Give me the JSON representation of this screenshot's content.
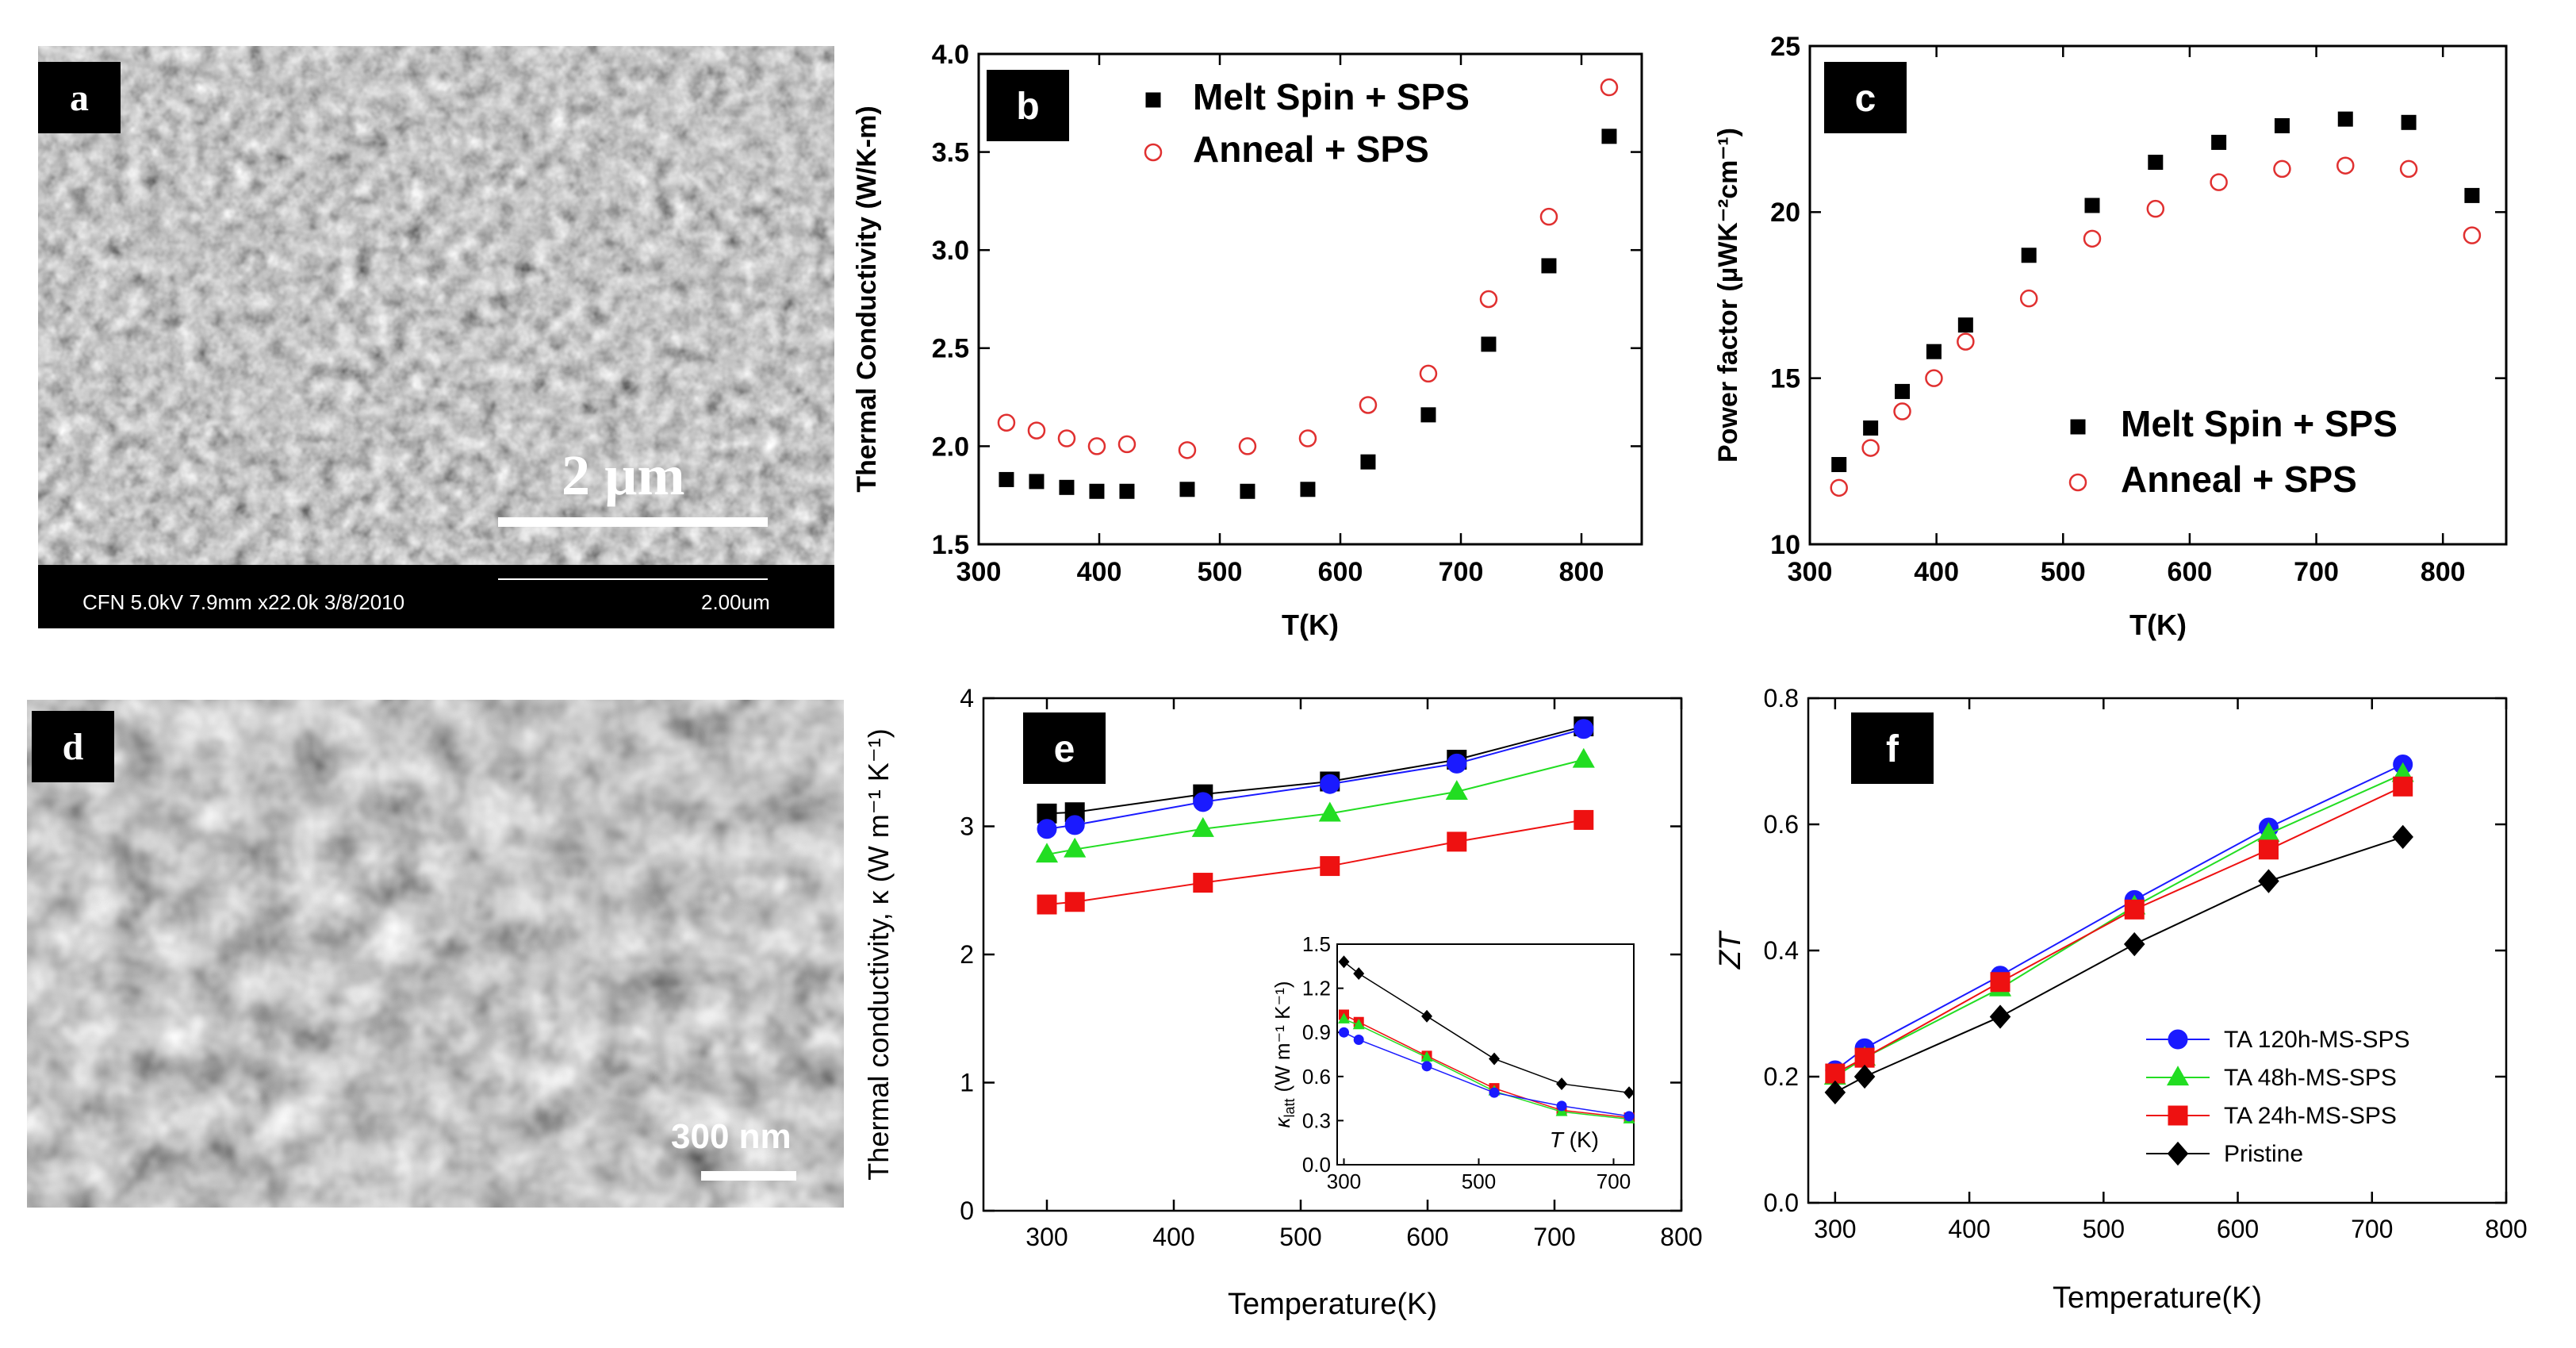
{
  "panels": {
    "a": {
      "label": "a",
      "scale_bar": "2 µm",
      "footer_info": "CFN 5.0kV 7.9mm x22.0k 3/8/2010",
      "footer_scale": "2.00um"
    },
    "d": {
      "label": "d",
      "scale_bar": "300 nm"
    }
  },
  "chart_data": [
    {
      "panel": "b",
      "type": "scatter",
      "xlabel": "T(K)",
      "ylabel": "Thermal Conductivity (W/K-m)",
      "xlim": [
        300,
        850
      ],
      "ylim": [
        1.5,
        4.0
      ],
      "xticks": [
        "300",
        "400",
        "500",
        "600",
        "700",
        "800"
      ],
      "yticks": [
        "1.5",
        "2.0",
        "2.5",
        "3.0",
        "3.5",
        "4.0"
      ],
      "legend_position": "top-center",
      "series": [
        {
          "name": "Melt Spin + SPS",
          "marker": "filled-square",
          "color": "#000000",
          "x": [
            323,
            348,
            373,
            398,
            423,
            473,
            523,
            573,
            623,
            673,
            723,
            773,
            823
          ],
          "y": [
            1.83,
            1.82,
            1.79,
            1.77,
            1.77,
            1.78,
            1.77,
            1.78,
            1.92,
            2.16,
            2.52,
            2.92,
            3.58
          ]
        },
        {
          "name": "Anneal + SPS",
          "marker": "open-circle",
          "color": "#e03030",
          "x": [
            323,
            348,
            373,
            398,
            423,
            473,
            523,
            573,
            623,
            673,
            723,
            773,
            823
          ],
          "y": [
            2.12,
            2.08,
            2.04,
            2.0,
            2.01,
            1.98,
            2.0,
            2.04,
            2.21,
            2.37,
            2.75,
            3.17,
            3.83
          ]
        }
      ]
    },
    {
      "panel": "c",
      "type": "scatter",
      "xlabel": "T(K)",
      "ylabel": "Power factor (µWK⁻²cm⁻¹)",
      "xlim": [
        300,
        850
      ],
      "ylim": [
        10,
        25
      ],
      "xticks": [
        "300",
        "400",
        "500",
        "600",
        "700",
        "800"
      ],
      "yticks": [
        "10",
        "15",
        "20",
        "25"
      ],
      "legend_position": "bottom-right",
      "series": [
        {
          "name": "Melt Spin + SPS",
          "marker": "filled-square",
          "color": "#000000",
          "x": [
            323,
            348,
            373,
            398,
            423,
            473,
            523,
            573,
            623,
            673,
            723,
            773,
            823
          ],
          "y": [
            12.4,
            13.5,
            14.6,
            15.8,
            16.6,
            18.7,
            20.2,
            21.5,
            22.1,
            22.6,
            22.8,
            22.7,
            20.5
          ]
        },
        {
          "name": "Anneal + SPS",
          "marker": "open-circle",
          "color": "#e03030",
          "x": [
            323,
            348,
            373,
            398,
            423,
            473,
            523,
            573,
            623,
            673,
            723,
            773,
            823
          ],
          "y": [
            11.7,
            12.9,
            14.0,
            15.0,
            16.1,
            17.4,
            19.2,
            20.1,
            20.9,
            21.3,
            21.4,
            21.3,
            19.3
          ]
        }
      ]
    },
    {
      "panel": "e",
      "type": "line",
      "xlabel": "Temperature(K)",
      "ylabel": "Thermal conductivity, κ (W m⁻¹ K⁻¹)",
      "xlim": [
        250,
        800
      ],
      "ylim": [
        0,
        4
      ],
      "xticks": [
        "300",
        "400",
        "500",
        "600",
        "700",
        "800"
      ],
      "yticks": [
        "0",
        "1",
        "2",
        "3",
        "4"
      ],
      "series": [
        {
          "name": "",
          "marker": "square",
          "color": "#000000",
          "x": [
            300,
            322,
            423,
            523,
            623,
            723
          ],
          "y": [
            3.1,
            3.11,
            3.25,
            3.35,
            3.52,
            3.78
          ]
        },
        {
          "name": "",
          "marker": "circle",
          "color": "#1a1aff",
          "x": [
            300,
            322,
            423,
            523,
            623,
            723
          ],
          "y": [
            2.98,
            3.01,
            3.19,
            3.33,
            3.49,
            3.76
          ]
        },
        {
          "name": "",
          "marker": "triangle",
          "color": "#22dd22",
          "x": [
            300,
            322,
            423,
            523,
            623,
            723
          ],
          "y": [
            2.78,
            2.82,
            2.98,
            3.1,
            3.27,
            3.52
          ]
        },
        {
          "name": "",
          "marker": "square",
          "color": "#ee1111",
          "x": [
            300,
            322,
            423,
            523,
            623,
            723
          ],
          "y": [
            2.39,
            2.41,
            2.56,
            2.69,
            2.88,
            3.05
          ]
        }
      ],
      "inset": {
        "type": "line",
        "xlabel": "T (K)",
        "ylabel": "κ_latt (W m⁻¹ K⁻¹)",
        "ylabel_main": "κ",
        "ylabel_sub": "latt",
        "ylabel_units": "(W m⁻¹ K⁻¹)",
        "xlabel_italic": "T",
        "xlabel_units": "(K)",
        "xlim": [
          290,
          730
        ],
        "ylim": [
          0,
          1.5
        ],
        "xticks": [
          "300",
          "500",
          "700"
        ],
        "xtick_values": [
          300,
          500,
          700
        ],
        "yticks": [
          "0.0",
          "0.3",
          "0.6",
          "0.9",
          "1.2",
          "1.5"
        ],
        "series": [
          {
            "name": "",
            "color": "#000000",
            "marker": "diamond",
            "x": [
              300,
              322,
              423,
              523,
              623,
              723
            ],
            "y": [
              1.38,
              1.3,
              1.01,
              0.72,
              0.55,
              0.49
            ]
          },
          {
            "name": "",
            "color": "#ee1111",
            "marker": "square",
            "x": [
              300,
              322,
              423,
              523,
              623,
              723
            ],
            "y": [
              1.02,
              0.97,
              0.74,
              0.52,
              0.37,
              0.32
            ]
          },
          {
            "name": "",
            "color": "#22dd22",
            "marker": "triangle",
            "x": [
              300,
              322,
              423,
              523,
              623,
              723
            ],
            "y": [
              0.99,
              0.95,
              0.73,
              0.5,
              0.36,
              0.31
            ]
          },
          {
            "name": "",
            "color": "#1a1aff",
            "marker": "circle",
            "x": [
              300,
              322,
              423,
              523,
              623,
              723
            ],
            "y": [
              0.9,
              0.85,
              0.67,
              0.49,
              0.4,
              0.33
            ]
          }
        ]
      }
    },
    {
      "panel": "f",
      "type": "line",
      "xlabel": "Temperature(K)",
      "ylabel": "ZT",
      "xlim": [
        280,
        800
      ],
      "ylim": [
        0,
        0.8
      ],
      "xticks": [
        "300",
        "400",
        "500",
        "600",
        "700",
        "800"
      ],
      "yticks": [
        "0.0",
        "0.2",
        "0.4",
        "0.6",
        "0.8"
      ],
      "legend_position": "bottom-right",
      "series": [
        {
          "name": "TA 120h-MS-SPS",
          "marker": "circle",
          "color": "#1a1aff",
          "x": [
            300,
            322,
            423,
            523,
            623,
            723
          ],
          "y": [
            0.21,
            0.245,
            0.36,
            0.48,
            0.595,
            0.695
          ]
        },
        {
          "name": "TA 48h-MS-SPS",
          "marker": "triangle",
          "color": "#22dd22",
          "x": [
            300,
            322,
            423,
            523,
            623,
            723
          ],
          "y": [
            0.2,
            0.23,
            0.34,
            0.47,
            0.585,
            0.68
          ]
        },
        {
          "name": "TA 24h-MS-SPS",
          "marker": "square",
          "color": "#ee1111",
          "x": [
            300,
            322,
            423,
            523,
            623,
            723
          ],
          "y": [
            0.205,
            0.23,
            0.35,
            0.465,
            0.56,
            0.66
          ]
        },
        {
          "name": "Pristine",
          "marker": "diamond",
          "color": "#000000",
          "x": [
            300,
            322,
            423,
            523,
            623,
            723
          ],
          "y": [
            0.175,
            0.2,
            0.295,
            0.41,
            0.51,
            0.58
          ]
        }
      ]
    }
  ]
}
